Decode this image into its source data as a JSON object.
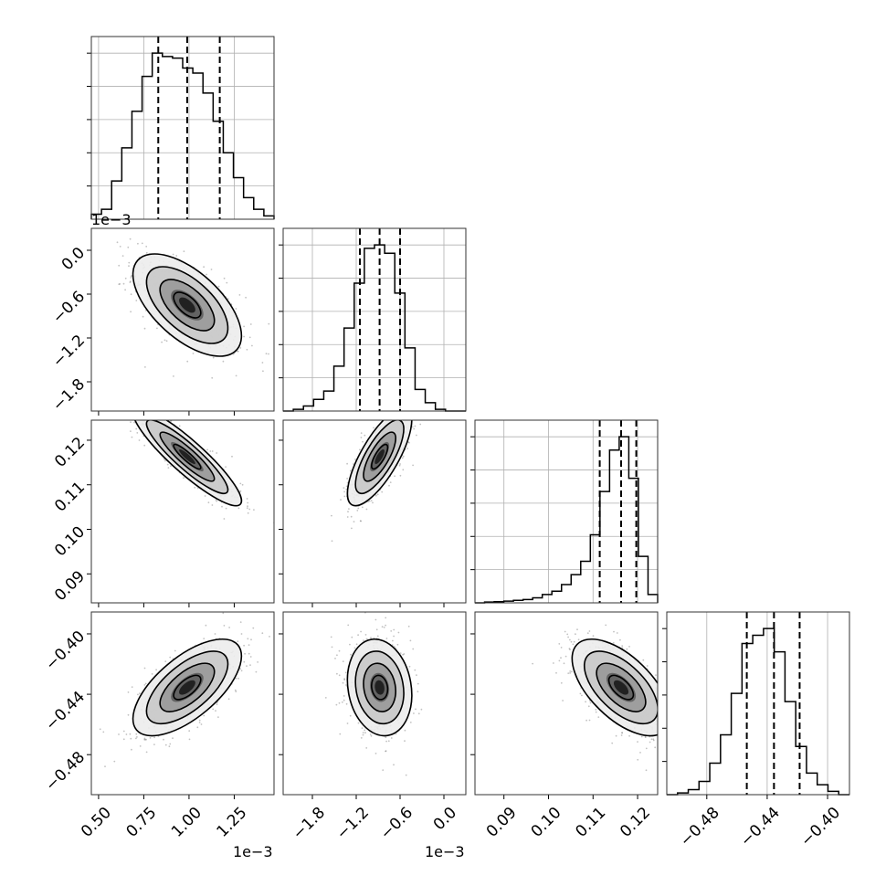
{
  "chart_data": {
    "type": "corner",
    "title": "",
    "parameters": [
      {
        "range": [
          0.00046,
          0.00147
        ],
        "ticks": [
          0.0005,
          0.00075,
          0.001,
          0.00125
        ],
        "tick_labels": [
          "0.50",
          "0.75",
          "1.00",
          "1.25"
        ],
        "offset_label": "1e−3",
        "quantiles": [
          0.00083,
          0.00099,
          0.00117
        ],
        "hist_counts": [
          3,
          6,
          23,
          43,
          65,
          86,
          100,
          98,
          97,
          91,
          88,
          76,
          59,
          40,
          25,
          13,
          6,
          2
        ],
        "hist_ylim": [
          0,
          110
        ]
      },
      {
        "range": [
          -0.0022,
          0.0003
        ],
        "ticks": [
          -0.0018,
          -0.0012,
          -0.0006,
          0.0
        ],
        "tick_labels": [
          "−1.8",
          "−1.2",
          "−0.6",
          "0.0"
        ],
        "offset_label": "1e−3",
        "quantiles": [
          -0.00115,
          -0.00088,
          -0.0006
        ],
        "hist_counts": [
          0,
          1,
          3,
          7,
          12,
          27,
          50,
          77,
          98,
          100,
          95,
          71,
          38,
          13,
          5,
          1,
          0,
          0
        ],
        "hist_ylim": [
          0,
          110
        ]
      },
      {
        "range": [
          0.0835,
          0.1245
        ],
        "ticks": [
          0.09,
          0.1,
          0.11,
          0.12
        ],
        "tick_labels": [
          "0.09",
          "0.10",
          "0.11",
          "0.12"
        ],
        "offset_label": "",
        "quantiles": [
          0.1115,
          0.1163,
          0.1197
        ],
        "hist_counts": [
          0,
          0.5,
          0.7,
          1,
          1.5,
          2,
          3,
          5,
          7,
          11,
          17,
          25,
          41,
          67,
          92,
          100,
          75,
          28,
          5
        ],
        "hist_ylim": [
          0,
          110
        ]
      },
      {
        "range": [
          -0.5065,
          -0.3855
        ],
        "ticks": [
          -0.48,
          -0.44,
          -0.4
        ],
        "tick_labels": [
          "−0.48",
          "−0.44",
          "−0.40"
        ],
        "offset_label": "",
        "quantiles": [
          -0.4535,
          -0.4355,
          -0.4185
        ],
        "hist_counts": [
          0,
          1,
          3,
          8,
          19,
          36,
          61,
          91,
          96,
          100,
          86,
          56,
          29,
          13,
          6,
          2,
          0
        ],
        "hist_ylim": [
          0,
          110
        ]
      }
    ],
    "pairs": [
      {
        "x": 0,
        "y": 1,
        "mean": [
          0.00099,
          -0.00075
        ],
        "sd": [
          0.00015,
          0.00035
        ],
        "rho": -0.6
      },
      {
        "x": 0,
        "y": 2,
        "mean": [
          0.00099,
          0.1163
        ],
        "sd": [
          0.00015,
          0.0055
        ],
        "rho": -0.9
      },
      {
        "x": 1,
        "y": 2,
        "mean": [
          -0.00088,
          0.1163
        ],
        "sd": [
          0.00022,
          0.0055
        ],
        "rho": 0.75
      },
      {
        "x": 0,
        "y": 3,
        "mean": [
          0.00099,
          -0.4355
        ],
        "sd": [
          0.00015,
          0.016
        ],
        "rho": 0.65
      },
      {
        "x": 1,
        "y": 3,
        "mean": [
          -0.00088,
          -0.4355
        ],
        "sd": [
          0.00022,
          0.016
        ],
        "rho": -0.15
      },
      {
        "x": 2,
        "y": 3,
        "mean": [
          0.1163,
          -0.4355
        ],
        "sd": [
          0.0055,
          0.016
        ],
        "rho": -0.6
      }
    ],
    "contour_levels_sigma": [
      0.5,
      1.0,
      1.5,
      2.0
    ],
    "grid": true,
    "colors": {
      "line": "#000000",
      "scatter": "#777777",
      "grid": "#b0b0b0",
      "frame": "#333333"
    }
  }
}
